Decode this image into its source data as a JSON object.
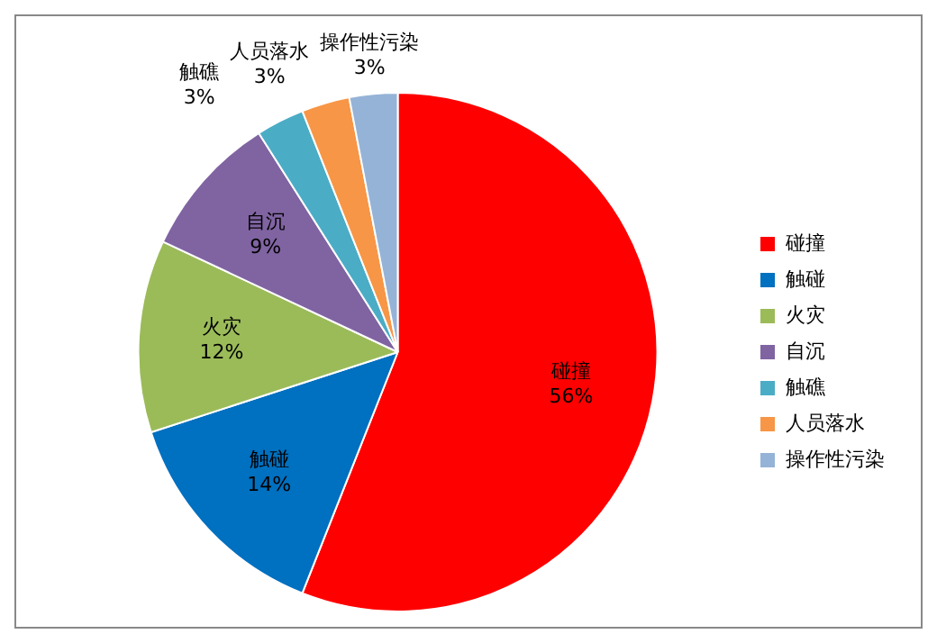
{
  "chart_data": {
    "type": "pie",
    "categories": [
      "碰撞",
      "触碰",
      "火灾",
      "自沉",
      "触礁",
      "人员落水",
      "操作性污染"
    ],
    "values": [
      56,
      14,
      12,
      9,
      3,
      3,
      3
    ],
    "colors": [
      "#ff0000",
      "#0070c0",
      "#9bbb59",
      "#8064a2",
      "#4bacc6",
      "#f79646",
      "#95b3d7"
    ],
    "value_labels": [
      "56%",
      "14%",
      "12%",
      "9%",
      "3%",
      "3%",
      "3%"
    ],
    "legend": "right"
  }
}
